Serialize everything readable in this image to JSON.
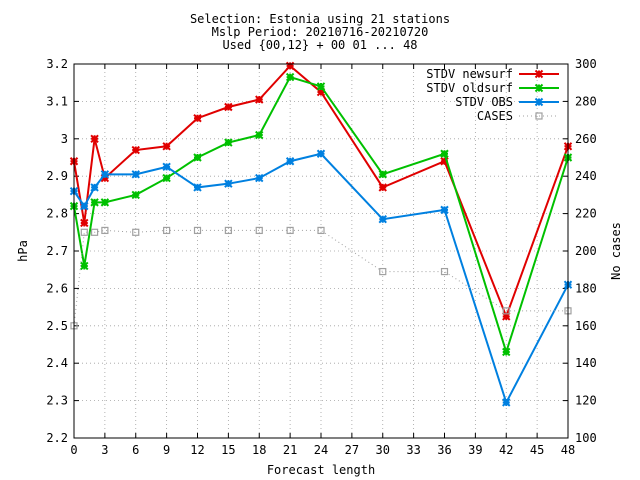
{
  "chart_data": {
    "type": "line",
    "title_lines": [
      "Selection: Estonia using    21 stations",
      "Mslp   Period: 20210716-20210720",
      "Used {00,12} + 00 01 ... 48"
    ],
    "xlabel": "Forecast length",
    "ylabel": "hPa",
    "y2label": "No cases",
    "xlim": [
      0,
      48
    ],
    "ylim": [
      2.2,
      3.2
    ],
    "y2lim": [
      100,
      300
    ],
    "xticks": [
      0,
      3,
      6,
      9,
      12,
      15,
      18,
      21,
      24,
      27,
      30,
      33,
      36,
      39,
      42,
      45,
      48
    ],
    "yticks": [
      2.2,
      2.3,
      2.4,
      2.5,
      2.6,
      2.7,
      2.8,
      2.9,
      3,
      3.1,
      3.2
    ],
    "y2ticks": [
      100,
      120,
      140,
      160,
      180,
      200,
      220,
      240,
      260,
      280,
      300
    ],
    "grid": true,
    "legend_position": "top-right",
    "series": [
      {
        "name": "STDV newsurf",
        "color": "#e00000",
        "axis": "left",
        "marker": "star",
        "x": [
          0,
          1,
          2,
          3,
          6,
          9,
          12,
          15,
          18,
          21,
          24,
          30,
          36,
          42,
          48
        ],
        "values": [
          2.94,
          2.775,
          3.0,
          2.895,
          2.97,
          2.98,
          3.055,
          3.085,
          3.105,
          3.195,
          3.125,
          2.87,
          2.94,
          2.525,
          2.98
        ]
      },
      {
        "name": "STDV oldsurf",
        "color": "#00c000",
        "axis": "left",
        "marker": "star",
        "x": [
          0,
          1,
          2,
          3,
          6,
          9,
          12,
          15,
          18,
          21,
          24,
          30,
          36,
          42,
          48
        ],
        "values": [
          2.82,
          2.66,
          2.83,
          2.83,
          2.85,
          2.895,
          2.95,
          2.99,
          3.01,
          3.165,
          3.14,
          2.905,
          2.96,
          2.43,
          2.95
        ]
      },
      {
        "name": "STDV OBS",
        "color": "#0080e0",
        "axis": "left",
        "marker": "star",
        "x": [
          0,
          1,
          2,
          3,
          6,
          9,
          12,
          15,
          18,
          21,
          24,
          30,
          36,
          42,
          48
        ],
        "values": [
          2.86,
          2.82,
          2.87,
          2.905,
          2.905,
          2.925,
          2.87,
          2.88,
          2.895,
          2.94,
          2.96,
          2.785,
          2.81,
          2.295,
          2.61
        ]
      },
      {
        "name": "CASES",
        "color": "#a0a0a0",
        "axis": "right",
        "marker": "square",
        "x": [
          0,
          1,
          2,
          3,
          6,
          9,
          12,
          15,
          18,
          21,
          24,
          30,
          36,
          42,
          48
        ],
        "values": [
          160,
          210,
          210,
          211,
          210,
          211,
          211,
          211,
          211,
          211,
          211,
          189,
          189,
          168,
          168
        ]
      }
    ]
  }
}
